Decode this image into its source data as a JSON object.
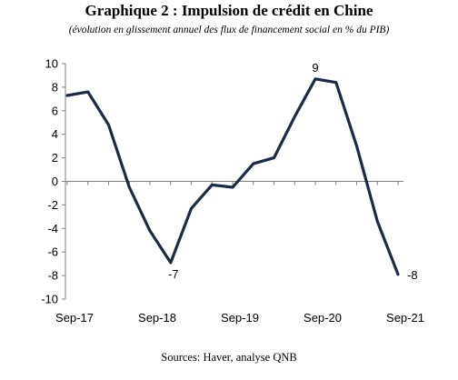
{
  "title": "Graphique 2 : Impulsion de crédit en Chine",
  "subtitle": "(évolution en glissement annuel des flux de financement social en % du PIB)",
  "source": "Sources: Haver, analyse QNB",
  "colors": {
    "line": "#1b2a47",
    "axis": "#7f7f7f"
  },
  "chart_data": {
    "type": "line",
    "title": "Graphique 2 : Impulsion de crédit en Chine",
    "subtitle": "(évolution en glissement annuel des flux de financement social en % du PIB)",
    "xlabel": "",
    "ylabel": "",
    "ylim": [
      -10,
      10
    ],
    "yticks": [
      "10",
      "8",
      "6",
      "4",
      "2",
      "0",
      "-2",
      "-4",
      "-6",
      "-8",
      "-10"
    ],
    "xticks": [
      "Sep-17",
      "Sep-18",
      "Sep-19",
      "Sep-20",
      "Sep-21"
    ],
    "grid": false,
    "x": [
      "2017-09",
      "2017-12",
      "2018-03",
      "2018-06",
      "2018-09",
      "2018-12",
      "2019-03",
      "2019-06",
      "2019-09",
      "2019-12",
      "2020-03",
      "2020-06",
      "2020-09",
      "2020-12",
      "2021-03",
      "2021-06",
      "2021-09"
    ],
    "values": [
      7.3,
      7.6,
      4.8,
      -0.5,
      -4.2,
      -6.9,
      -2.3,
      -0.3,
      -0.5,
      1.5,
      2.0,
      5.5,
      8.7,
      8.4,
      3.0,
      -3.4,
      -7.9
    ],
    "data_labels": [
      {
        "index": 5,
        "text": "-7"
      },
      {
        "index": 12,
        "text": "9"
      },
      {
        "index": 16,
        "text": "-8"
      }
    ]
  }
}
